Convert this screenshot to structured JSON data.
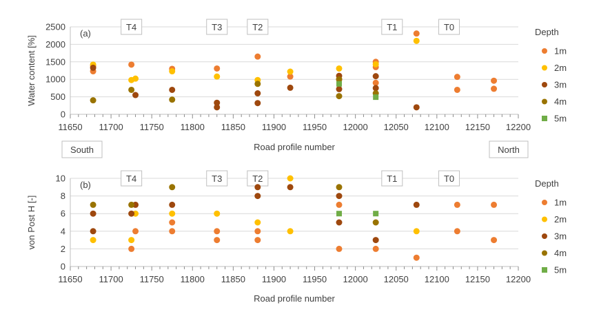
{
  "chart_data": [
    {
      "type": "scatter",
      "panel_label": "(a)",
      "xlabel": "Road profile number",
      "ylabel": "Water content [%]",
      "xlim": [
        11650,
        12200
      ],
      "ylim": [
        0,
        2500
      ],
      "xticks": [
        11650,
        11700,
        11750,
        11800,
        11850,
        11900,
        11950,
        12000,
        12050,
        12100,
        12150,
        12200
      ],
      "yticks": [
        0,
        500,
        1000,
        1500,
        2000,
        2500
      ],
      "grid": "horizontal",
      "legend": {
        "title": "Depth",
        "placement": "right"
      },
      "annotations": [
        {
          "text": "T4",
          "x": 11725
        },
        {
          "text": "T3",
          "x": 11830
        },
        {
          "text": "T2",
          "x": 11880
        },
        {
          "text": "T1",
          "x": 12045
        },
        {
          "text": "T0",
          "x": 12115
        }
      ],
      "side_labels": {
        "left": "South",
        "right": "North"
      },
      "series": [
        {
          "name": "1m",
          "color": "#ED7D31",
          "marker": "circle",
          "points": [
            [
              11678,
              1380
            ],
            [
              11678,
              1230
            ],
            [
              11725,
              1420
            ],
            [
              11775,
              1300
            ],
            [
              11830,
              1310
            ],
            [
              11880,
              1650
            ],
            [
              11920,
              1080
            ],
            [
              11980,
              1000
            ],
            [
              12025,
              1500
            ],
            [
              12025,
              1350
            ],
            [
              12025,
              900
            ],
            [
              12075,
              2310
            ],
            [
              12125,
              1070
            ],
            [
              12125,
              700
            ],
            [
              12170,
              960
            ],
            [
              12170,
              730
            ]
          ]
        },
        {
          "name": "2m",
          "color": "#FFC000",
          "marker": "circle",
          "points": [
            [
              11678,
              1420
            ],
            [
              11725,
              980
            ],
            [
              11730,
              1020
            ],
            [
              11775,
              1230
            ],
            [
              11830,
              1080
            ],
            [
              11880,
              980
            ],
            [
              11920,
              1220
            ],
            [
              11980,
              1310
            ],
            [
              12025,
              1430
            ],
            [
              12075,
              2100
            ]
          ]
        },
        {
          "name": "3m",
          "color": "#9E480E",
          "marker": "circle",
          "points": [
            [
              11678,
              1330
            ],
            [
              11730,
              550
            ],
            [
              11775,
              700
            ],
            [
              11830,
              330
            ],
            [
              11830,
              200
            ],
            [
              11880,
              600
            ],
            [
              11880,
              320
            ],
            [
              11920,
              760
            ],
            [
              11980,
              1100
            ],
            [
              11980,
              720
            ],
            [
              12025,
              1090
            ],
            [
              12025,
              750
            ],
            [
              12075,
              200
            ]
          ]
        },
        {
          "name": "4m",
          "color": "#997300",
          "marker": "circle",
          "points": [
            [
              11678,
              400
            ],
            [
              11725,
              700
            ],
            [
              11775,
              420
            ],
            [
              11880,
              870
            ],
            [
              11980,
              1000
            ],
            [
              11980,
              520
            ],
            [
              12025,
              600
            ]
          ]
        },
        {
          "name": "5m",
          "color": "#70AD47",
          "marker": "square",
          "points": [
            [
              11980,
              870
            ],
            [
              12025,
              490
            ]
          ]
        }
      ]
    },
    {
      "type": "scatter",
      "panel_label": "(b)",
      "xlabel": "Road profile number",
      "ylabel": "von Post H [-]",
      "xlim": [
        11650,
        12200
      ],
      "ylim": [
        0,
        10
      ],
      "xticks": [
        11650,
        11700,
        11750,
        11800,
        11850,
        11900,
        11950,
        12000,
        12050,
        12100,
        12150,
        12200
      ],
      "yticks": [
        0,
        2,
        4,
        6,
        8,
        10
      ],
      "grid": "horizontal",
      "legend": {
        "title": "Depth",
        "placement": "right"
      },
      "annotations": [
        {
          "text": "T4",
          "x": 11725
        },
        {
          "text": "T3",
          "x": 11830
        },
        {
          "text": "T2",
          "x": 11880
        },
        {
          "text": "T1",
          "x": 12045
        },
        {
          "text": "T0",
          "x": 12115
        }
      ],
      "series": [
        {
          "name": "1m",
          "color": "#ED7D31",
          "marker": "circle",
          "points": [
            [
              11725,
              2
            ],
            [
              11730,
              4
            ],
            [
              11775,
              5
            ],
            [
              11775,
              4
            ],
            [
              11830,
              4
            ],
            [
              11830,
              3
            ],
            [
              11880,
              4
            ],
            [
              11880,
              3
            ],
            [
              11980,
              7
            ],
            [
              11980,
              2
            ],
            [
              12025,
              2
            ],
            [
              12075,
              1
            ],
            [
              12125,
              7
            ],
            [
              12125,
              4
            ],
            [
              12170,
              7
            ],
            [
              12170,
              3
            ]
          ]
        },
        {
          "name": "2m",
          "color": "#FFC000",
          "marker": "circle",
          "points": [
            [
              11678,
              3
            ],
            [
              11725,
              3
            ],
            [
              11730,
              6
            ],
            [
              11775,
              6
            ],
            [
              11830,
              6
            ],
            [
              11880,
              5
            ],
            [
              11920,
              10
            ],
            [
              11920,
              4
            ],
            [
              12075,
              4
            ]
          ]
        },
        {
          "name": "3m",
          "color": "#9E480E",
          "marker": "circle",
          "points": [
            [
              11678,
              6
            ],
            [
              11678,
              4
            ],
            [
              11725,
              6
            ],
            [
              11730,
              7
            ],
            [
              11775,
              7
            ],
            [
              11880,
              9
            ],
            [
              11880,
              8
            ],
            [
              11920,
              9
            ],
            [
              11980,
              8
            ],
            [
              11980,
              5
            ],
            [
              12025,
              3
            ],
            [
              12075,
              7
            ]
          ]
        },
        {
          "name": "4m",
          "color": "#997300",
          "marker": "circle",
          "points": [
            [
              11678,
              7
            ],
            [
              11725,
              7
            ],
            [
              11775,
              9
            ],
            [
              11980,
              9
            ],
            [
              12025,
              5
            ]
          ]
        },
        {
          "name": "5m",
          "color": "#70AD47",
          "marker": "square",
          "points": [
            [
              11980,
              6
            ],
            [
              12025,
              6
            ]
          ]
        }
      ]
    }
  ]
}
